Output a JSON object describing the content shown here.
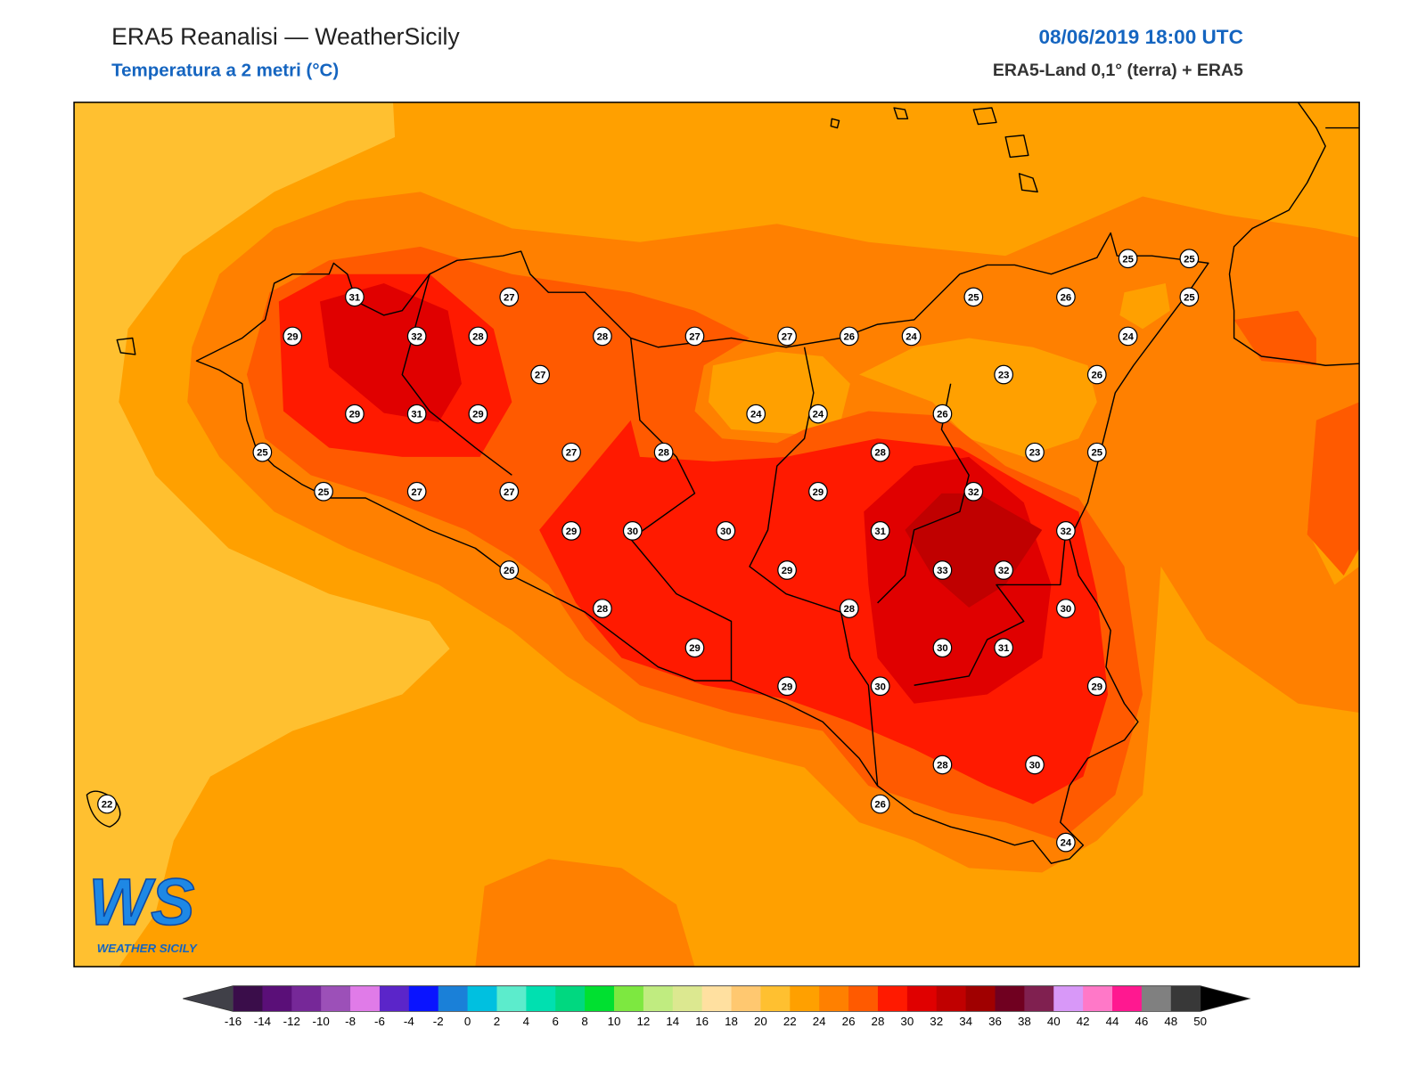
{
  "header": {
    "title": "ERA5 Reanalisi — WeatherSicily",
    "subtitle": "Temperatura a 2 metri (°C)",
    "datetime": "08/06/2019 18:00 UTC",
    "source": "ERA5-Land 0,1° (terra) + ERA5"
  },
  "logo": {
    "mark": "WS",
    "text": "WEATHER SICILY"
  },
  "stations": [
    31,
    29,
    32,
    28,
    27,
    28,
    27,
    27,
    26,
    24,
    25,
    26,
    25,
    25,
    25,
    24,
    27,
    23,
    26,
    29,
    31,
    29,
    24,
    24,
    26,
    25,
    27,
    28,
    28,
    23,
    25,
    25,
    27,
    27,
    29,
    32,
    29,
    30,
    30,
    31,
    32,
    26,
    29,
    33,
    32,
    28,
    28,
    30,
    29,
    30,
    31,
    29,
    30,
    29,
    28,
    30,
    26,
    24,
    22
  ],
  "colorbar": {
    "ticks": [
      -16,
      -14,
      -12,
      -10,
      -8,
      -6,
      -4,
      -2,
      0,
      2,
      4,
      6,
      8,
      10,
      12,
      14,
      16,
      18,
      20,
      22,
      24,
      26,
      28,
      30,
      32,
      34,
      36,
      38,
      40,
      42,
      44,
      46,
      48,
      50
    ],
    "colors": [
      "#3a0d4a",
      "#5a0f78",
      "#762898",
      "#9c50b8",
      "#e07be8",
      "#5b25c9",
      "#0a14ff",
      "#1a80d8",
      "#00c0e0",
      "#5ceccc",
      "#00e0b0",
      "#00d880",
      "#00e030",
      "#7de840",
      "#c0ec80",
      "#dce890",
      "#ffe0a0",
      "#ffc870",
      "#ffc030",
      "#ffa000",
      "#ff8000",
      "#ff5a00",
      "#ff1a00",
      "#e00000",
      "#c00000",
      "#a00000",
      "#700020",
      "#802050",
      "#d898f8",
      "#ff78c8",
      "#ff1890",
      "#808080",
      "#383838"
    ],
    "under_color": "#404048",
    "over_color": "#000000"
  }
}
